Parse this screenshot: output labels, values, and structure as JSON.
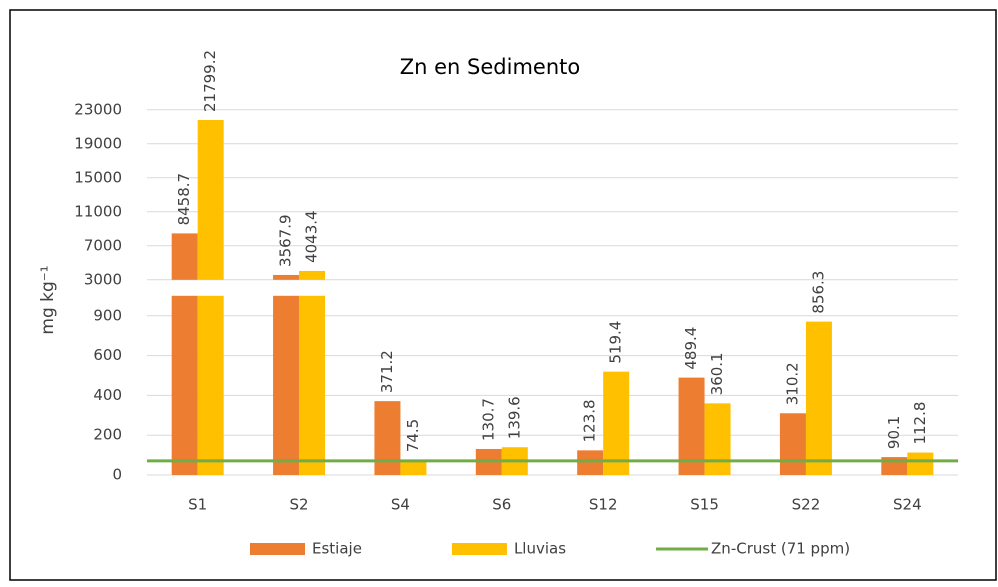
{
  "chart_data": {
    "type": "bar",
    "title": "Zn en Sedimento",
    "y_label": "mg kg⁻¹",
    "categories": [
      "S1",
      "S2",
      "S4",
      "S6",
      "S12",
      "S15",
      "S22",
      "S24"
    ],
    "series": [
      {
        "name": "Estiaje",
        "color": "#ed7d31",
        "values": [
          8458.7,
          3567.9,
          371.2,
          130.7,
          123.8,
          489.4,
          310.2,
          90.1
        ]
      },
      {
        "name": "Lluvias",
        "color": "#ffc000",
        "values": [
          21799.2,
          4043.4,
          74.5,
          139.6,
          519.4,
          360.1,
          856.3,
          112.8
        ]
      }
    ],
    "reference_line": {
      "name": "Zn-Crust (71 ppm)",
      "value": 71,
      "color": "#70ad47"
    },
    "ylim": [
      0,
      23000
    ],
    "y_break": [
      900,
      3000
    ],
    "yticks": [
      0,
      200,
      400,
      600,
      900,
      3000,
      7000,
      11000,
      15000,
      19000,
      23000
    ],
    "grid": true,
    "legend": "bottom"
  }
}
